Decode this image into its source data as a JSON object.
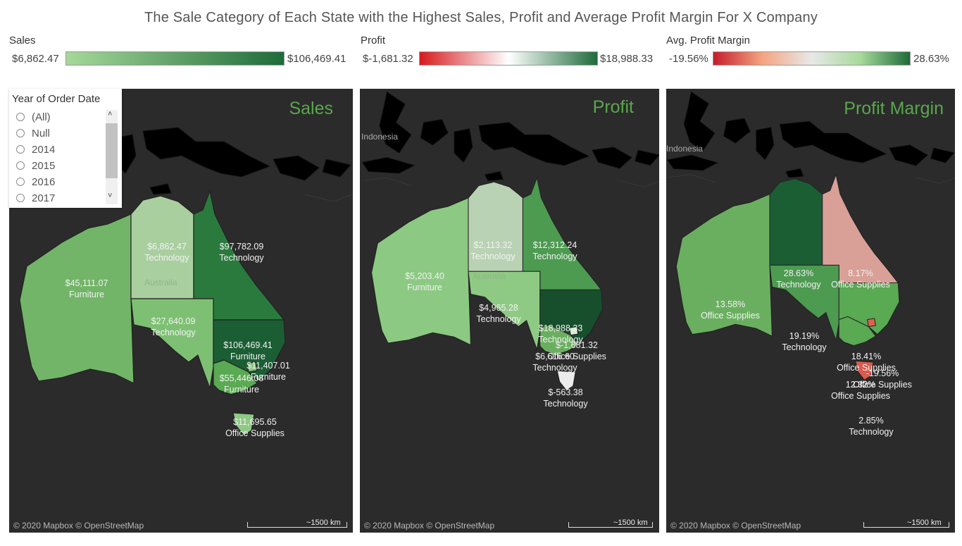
{
  "title": "The Sale Category of Each State with the Highest Sales, Profit and Average Profit Margin For X Company",
  "legends": {
    "sales": {
      "label": "Sales",
      "min": "$6,862.47",
      "max": "$106,469.41",
      "colors": [
        "#a6d99a",
        "#1e6b3a"
      ]
    },
    "profit": {
      "label": "Profit",
      "min": "$-1,681.32",
      "max": "$18,988.33",
      "colors": [
        "#d7191c",
        "#ffffff",
        "#1e6b3a"
      ]
    },
    "margin": {
      "label": "Avg. Profit Margin",
      "min": "-19.56%",
      "max": "28.63%",
      "colors": [
        "#c51b2b",
        "#f4a582",
        "#e8e8e8",
        "#a6d99a",
        "#1e6b3a"
      ]
    }
  },
  "filter": {
    "title": "Year of Order Date",
    "options": [
      "(All)",
      "Null",
      "2014",
      "2015",
      "2016",
      "2017"
    ],
    "selected": "(All)"
  },
  "panels": {
    "sales": {
      "title": "Sales",
      "country": "Australia"
    },
    "profit": {
      "title": "Profit",
      "country": "Australia",
      "neighbor": "Indonesia"
    },
    "margin": {
      "title": "Profit Margin",
      "neighbor": "Indonesia"
    }
  },
  "attribution": "© 2020 Mapbox © OpenStreetMap",
  "scale": "~1500 km",
  "sales_labels": [
    {
      "value": "$6,862.47",
      "category": "Technology"
    },
    {
      "value": "$97,782.09",
      "category": "Technology"
    },
    {
      "value": "$45,111.07",
      "category": "Furniture"
    },
    {
      "value": "$27,640.09",
      "category": "Technology"
    },
    {
      "value": "$106,469.41",
      "category": "Furniture"
    },
    {
      "value": "$11,407.01",
      "category": "Furniture"
    },
    {
      "value": "$55,446.08",
      "category": "Furniture"
    },
    {
      "value": "$11,695.65",
      "category": "Office Supplies"
    }
  ],
  "profit_labels": [
    {
      "value": "$2,113.32",
      "category": "Technology"
    },
    {
      "value": "$12,312.24",
      "category": "Technology"
    },
    {
      "value": "$5,203.40",
      "category": "Furniture"
    },
    {
      "value": "$4,965.28",
      "category": "Technology"
    },
    {
      "value": "$18,988.33",
      "category": "Technology"
    },
    {
      "value": "$-1,681.32",
      "category": "Office Supplies"
    },
    {
      "value": "$6,616.60",
      "category": "Technology"
    },
    {
      "value": "$-563.38",
      "category": "Technology"
    }
  ],
  "margin_labels": [
    {
      "value": "28.63%",
      "category": "Technology"
    },
    {
      "value": "8.17%",
      "category": "Office Supplies"
    },
    {
      "value": "13.58%",
      "category": "Office Supplies"
    },
    {
      "value": "19.19%",
      "category": "Technology"
    },
    {
      "value": "18.41%",
      "category": "Office Supplies"
    },
    {
      "value": "-19.56%",
      "category": "Office Supplies"
    },
    {
      "value": "12.32%",
      "category": "Office Supplies"
    },
    {
      "value": "2.85%",
      "category": "Technology"
    }
  ],
  "map_colors": {
    "sales": {
      "wa": "#72b568",
      "nt": "#a9cf9f",
      "qld": "#2a7a3e",
      "sa": "#7ec073",
      "nsw": "#1b5e34",
      "vic": "#5aa953",
      "act": "#86c57b",
      "tas": "#8fca84"
    },
    "profit": {
      "wa": "#8cc982",
      "nt": "#b9d2b4",
      "qld": "#4d9a51",
      "sa": "#8fca84",
      "nsw": "#174f2c",
      "vic": "#6aaf60",
      "act": "#d9eed4",
      "tas": "#ececec"
    },
    "margin": {
      "wa": "#6aaf60",
      "nt": "#1b5e34",
      "qld": "#d9a097",
      "sa": "#4d9a51",
      "nsw": "#5aa953",
      "vic": "#5aa953",
      "act": "#e06050",
      "tas": "#d95a4f"
    }
  }
}
